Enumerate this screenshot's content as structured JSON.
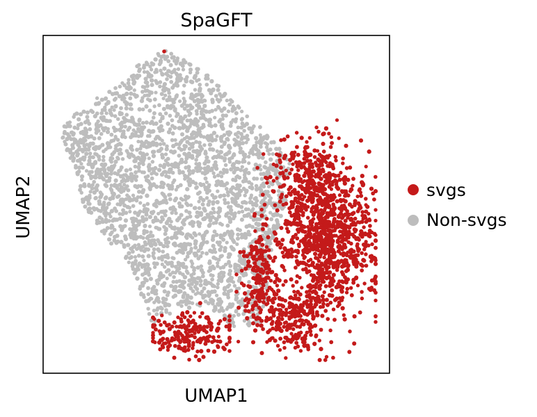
{
  "chart_data": {
    "type": "scatter",
    "title": "SpaGFT",
    "xlabel": "UMAP1",
    "ylabel": "UMAP2",
    "xlim": [
      0,
      10
    ],
    "ylim": [
      0,
      10
    ],
    "grid": false,
    "ticks": false,
    "legend_position": "right",
    "series": [
      {
        "name": "Non-svgs",
        "color": "#bdbdbd",
        "point_count": 2600
      },
      {
        "name": "svgs",
        "color": "#c41a1a",
        "point_count": 1800
      }
    ],
    "legend": [
      {
        "label": "svgs",
        "color": "#c41a1a"
      },
      {
        "label": "Non-svgs",
        "color": "#bdbdbd"
      }
    ]
  }
}
